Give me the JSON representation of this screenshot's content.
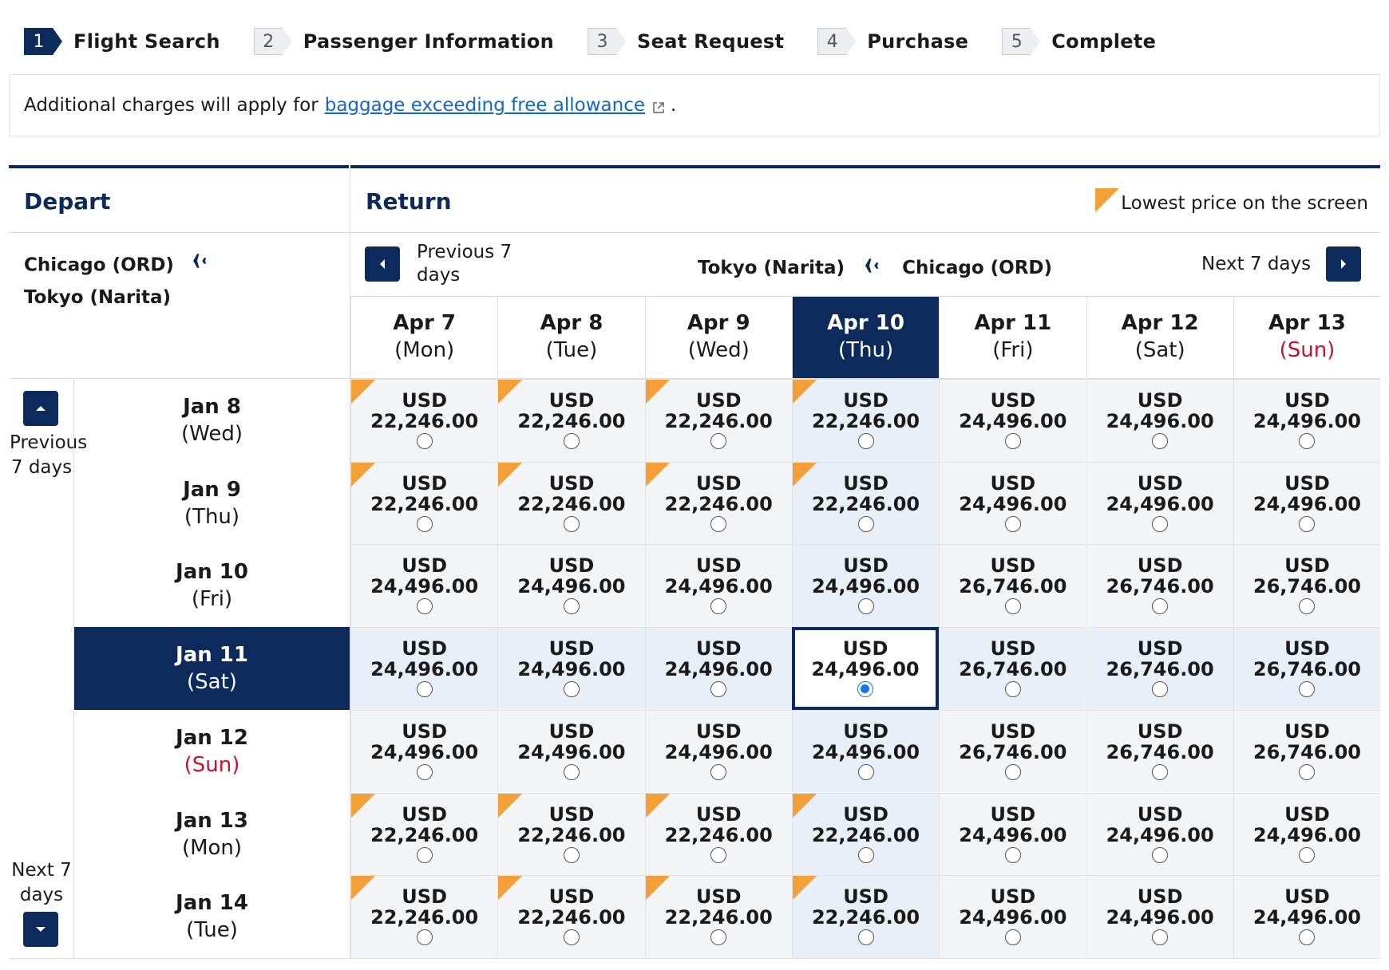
{
  "steps": [
    {
      "num": "1",
      "label": "Flight Search",
      "active": true
    },
    {
      "num": "2",
      "label": "Passenger Information",
      "active": false
    },
    {
      "num": "3",
      "label": "Seat Request",
      "active": false
    },
    {
      "num": "4",
      "label": "Purchase",
      "active": false
    },
    {
      "num": "5",
      "label": "Complete",
      "active": false
    }
  ],
  "notice": {
    "prefix": "Additional charges will apply for",
    "link": "baggage exceeding free allowance",
    "suffix": "."
  },
  "depart": {
    "heading": "Depart",
    "from": "Chicago (ORD)",
    "to": "Tokyo (Narita)"
  },
  "return": {
    "heading": "Return",
    "legend": "Lowest price on the screen",
    "previous": "Previous 7 days",
    "next": "Next 7 days",
    "from": "Tokyo (Narita)",
    "to": "Chicago (ORD)"
  },
  "side_nav": {
    "previous": "Previous 7 days",
    "next": "Next 7 days"
  },
  "currency": "USD",
  "return_dates": [
    {
      "date": "Apr 7",
      "day": "(Mon)",
      "sunday": false,
      "selected": false
    },
    {
      "date": "Apr 8",
      "day": "(Tue)",
      "sunday": false,
      "selected": false
    },
    {
      "date": "Apr 9",
      "day": "(Wed)",
      "sunday": false,
      "selected": false
    },
    {
      "date": "Apr 10",
      "day": "(Thu)",
      "sunday": false,
      "selected": true
    },
    {
      "date": "Apr 11",
      "day": "(Fri)",
      "sunday": false,
      "selected": false
    },
    {
      "date": "Apr 12",
      "day": "(Sat)",
      "sunday": false,
      "selected": false
    },
    {
      "date": "Apr 13",
      "day": "(Sun)",
      "sunday": true,
      "selected": false
    }
  ],
  "depart_dates": [
    {
      "date": "Jan 8",
      "day": "(Wed)",
      "sunday": false,
      "selected": false
    },
    {
      "date": "Jan 9",
      "day": "(Thu)",
      "sunday": false,
      "selected": false
    },
    {
      "date": "Jan 10",
      "day": "(Fri)",
      "sunday": false,
      "selected": false
    },
    {
      "date": "Jan 11",
      "day": "(Sat)",
      "sunday": false,
      "selected": true
    },
    {
      "date": "Jan 12",
      "day": "(Sun)",
      "sunday": true,
      "selected": false
    },
    {
      "date": "Jan 13",
      "day": "(Mon)",
      "sunday": false,
      "selected": false
    },
    {
      "date": "Jan 14",
      "day": "(Tue)",
      "sunday": false,
      "selected": false
    }
  ],
  "prices": [
    [
      "22,246.00",
      "22,246.00",
      "22,246.00",
      "22,246.00",
      "24,496.00",
      "24,496.00",
      "24,496.00"
    ],
    [
      "22,246.00",
      "22,246.00",
      "22,246.00",
      "22,246.00",
      "24,496.00",
      "24,496.00",
      "24,496.00"
    ],
    [
      "24,496.00",
      "24,496.00",
      "24,496.00",
      "24,496.00",
      "26,746.00",
      "26,746.00",
      "26,746.00"
    ],
    [
      "24,496.00",
      "24,496.00",
      "24,496.00",
      "24,496.00",
      "26,746.00",
      "26,746.00",
      "26,746.00"
    ],
    [
      "24,496.00",
      "24,496.00",
      "24,496.00",
      "24,496.00",
      "26,746.00",
      "26,746.00",
      "26,746.00"
    ],
    [
      "22,246.00",
      "22,246.00",
      "22,246.00",
      "22,246.00",
      "24,496.00",
      "24,496.00",
      "24,496.00"
    ],
    [
      "22,246.00",
      "22,246.00",
      "22,246.00",
      "22,246.00",
      "24,496.00",
      "24,496.00",
      "24,496.00"
    ]
  ],
  "lowest_price": "22,246.00",
  "selected_cell": {
    "row": 3,
    "col": 3
  },
  "colors": {
    "navy": "#0d2a5c",
    "orange": "#f4a039",
    "sunday_red": "#c8102e",
    "link": "#1466c8"
  }
}
